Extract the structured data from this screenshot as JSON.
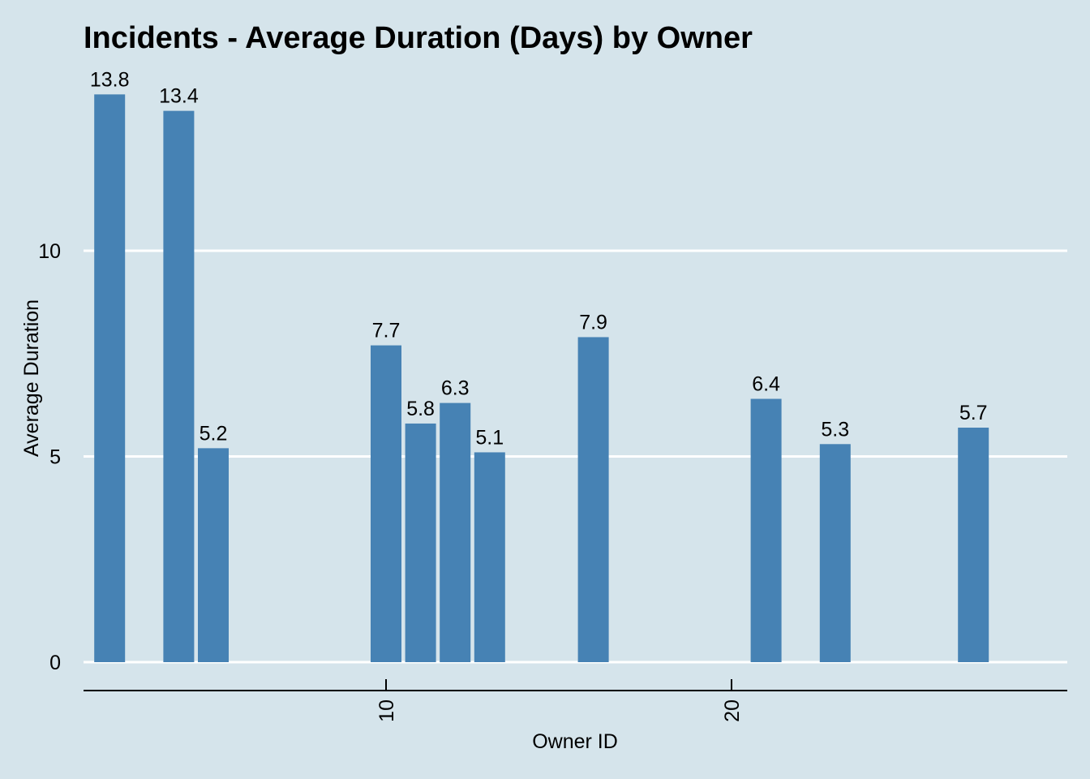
{
  "chart_data": {
    "type": "bar",
    "title": "Incidents - Average Duration (Days) by Owner",
    "xlabel": "Owner ID",
    "ylabel": "Average Duration",
    "x": [
      2,
      4,
      5,
      10,
      11,
      12,
      13,
      16,
      21,
      23,
      27
    ],
    "values": [
      13.8,
      13.4,
      5.2,
      7.7,
      5.8,
      6.3,
      5.1,
      7.9,
      6.4,
      5.3,
      5.7
    ],
    "data_labels": [
      "13.8",
      "13.4",
      "5.2",
      "7.7",
      "5.8",
      "6.3",
      "5.1",
      "7.9",
      "6.4",
      "5.3",
      "5.7"
    ],
    "x_ticks": [
      10,
      20
    ],
    "x_tick_labels": [
      "10",
      "20"
    ],
    "y_ticks": [
      0,
      5,
      10
    ],
    "y_tick_labels": [
      "0",
      "5",
      "10"
    ],
    "xlim": [
      0.1,
      28.6
    ],
    "ylim": [
      -0.7,
      14.5
    ],
    "grid": "horizontal-major",
    "bar_color": "#4682b4",
    "background_color": "#d5e4eb"
  }
}
